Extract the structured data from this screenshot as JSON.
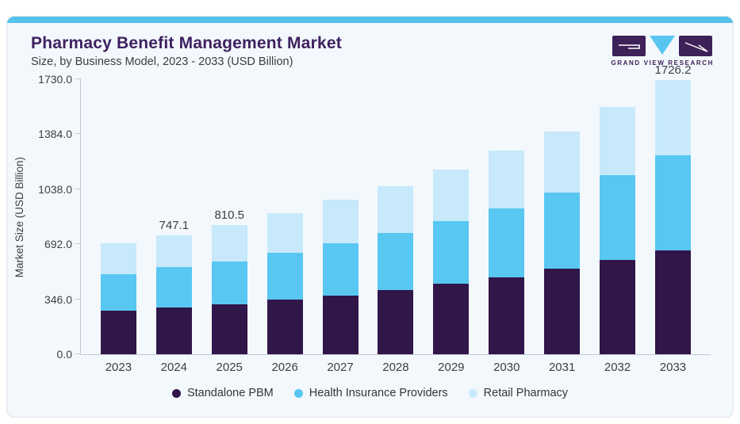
{
  "header": {
    "title": "Pharmacy Benefit Management Market",
    "subtitle": "Size, by Business Model, 2023 - 2033 (USD Billion)",
    "logo_text": "GRAND VIEW RESEARCH"
  },
  "colors": {
    "accent_strip": "#55c1ed",
    "title_text": "#3e2161",
    "card_background": "#f3f8fc",
    "card_border": "#dbe3ea",
    "axis_line": "#c3cad2",
    "logo_purple": "#3d2159",
    "logo_blue": "#58c6f0"
  },
  "chart_data": {
    "type": "bar",
    "stacked": true,
    "title": "Pharmacy Benefit Management Market Size, by Business Model, 2023 - 2033 (USD Billion)",
    "xlabel": "",
    "ylabel": "Market Size (USD Billion)",
    "categories": [
      "2023",
      "2024",
      "2025",
      "2026",
      "2027",
      "2028",
      "2029",
      "2030",
      "2031",
      "2032",
      "2033"
    ],
    "series": [
      {
        "name": "Standalone PBM",
        "color": "#31164a",
        "values": [
          274.7,
          295.3,
          313.4,
          343.2,
          369.0,
          403.5,
          443.2,
          486.0,
          537.5,
          592.6,
          652.4
        ]
      },
      {
        "name": "Health Insurance Providers",
        "color": "#58c7f2",
        "values": [
          228.3,
          250.9,
          268.2,
          297.3,
          326.7,
          360.7,
          394.7,
          432.9,
          480.8,
          532.4,
          601.3
        ]
      },
      {
        "name": "Retail Pharmacy",
        "color": "#c7e9fb",
        "values": [
          192.7,
          200.9,
          228.9,
          247.3,
          274.6,
          292.2,
          321.6,
          364.3,
          381.3,
          432.9,
          472.5
        ]
      }
    ],
    "totals_estimated": [
      695.7,
      747.1,
      810.5,
      887.8,
      970.3,
      1056.4,
      1159.5,
      1283.2,
      1399.6,
      1557.9,
      1726.2
    ],
    "bar_labels": [
      "",
      "747.1",
      "810.5",
      "",
      "",
      "",
      "",
      "",
      "",
      "",
      "1726.2"
    ],
    "y_ticks": [
      "0.0",
      "346.0",
      "692.0",
      "1038.0",
      "1384.0",
      "1730.0"
    ],
    "ylim": [
      0,
      1730
    ],
    "grid": false,
    "legend_position": "bottom"
  }
}
